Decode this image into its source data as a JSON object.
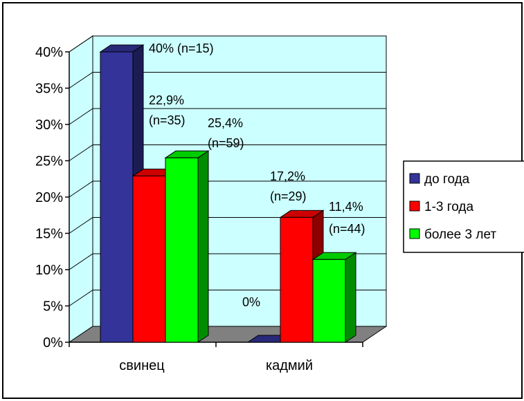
{
  "chart_data": {
    "type": "bar",
    "title": "",
    "xlabel": "",
    "ylabel": "",
    "categories": [
      "свинец",
      "кадмий"
    ],
    "ylim": [
      0,
      40
    ],
    "yticks": [
      0,
      5,
      10,
      15,
      20,
      25,
      30,
      35,
      40
    ],
    "ytick_labels": [
      "0%",
      "5%",
      "10%",
      "15%",
      "20%",
      "25%",
      "30%",
      "35%",
      "40%"
    ],
    "grid": true,
    "legend_position": "right",
    "plot_area_color": "#ccffff",
    "floor_color": "#808080",
    "series": [
      {
        "name": "до года",
        "color": "#333399",
        "values": [
          40,
          0
        ],
        "labels": [
          [
            "40% (n=15)"
          ],
          [
            "0%"
          ]
        ]
      },
      {
        "name": "1-3 года",
        "color": "#ff0000",
        "values": [
          22.9,
          17.2
        ],
        "labels": [
          [
            "22,9%",
            "(n=35)"
          ],
          [
            "17,2%",
            "(n=29)"
          ]
        ]
      },
      {
        "name": "более 3 лет",
        "color": "#00ff00",
        "values": [
          25.4,
          11.4
        ],
        "labels": [
          [
            "25,4%",
            "(n=59)"
          ],
          [
            "11,4%",
            "(n=44)"
          ]
        ]
      }
    ]
  }
}
